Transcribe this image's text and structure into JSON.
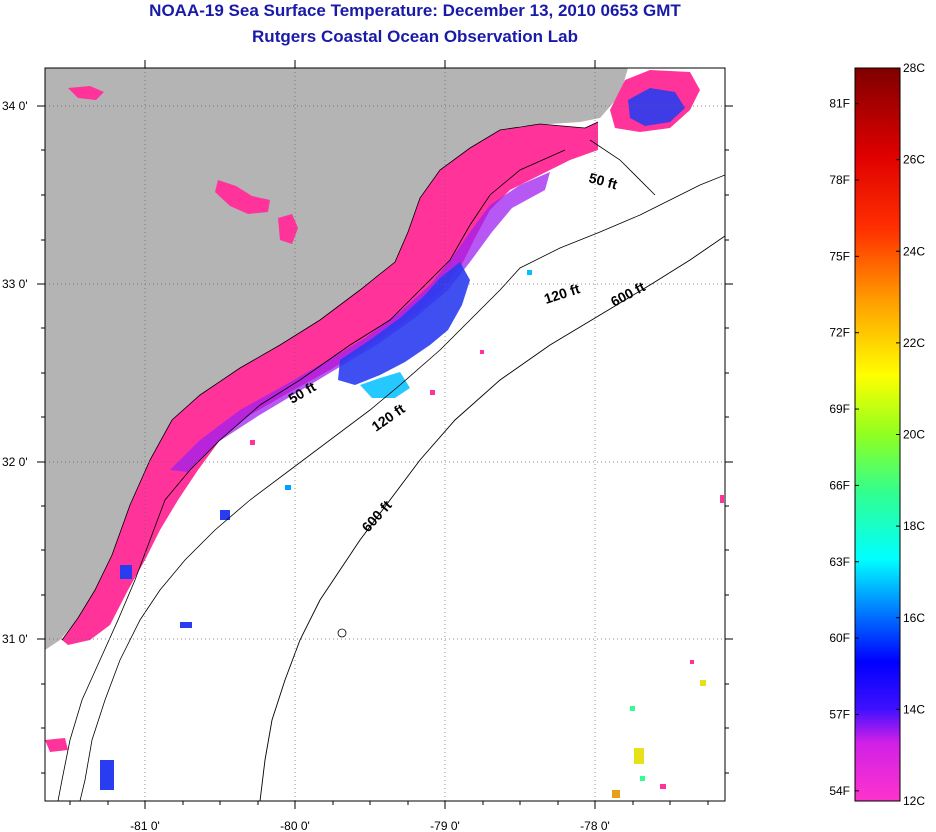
{
  "title": "NOAA-19 Sea Surface Temperature:  December 13, 2010 0653 GMT",
  "subtitle": "Rutgers Coastal Ocean Observation Lab",
  "map": {
    "lon_range": [
      -81.65,
      -77.2
    ],
    "lat_range": [
      30.0,
      34.2
    ],
    "lat_ticks": [
      "34 0'",
      "33 0'",
      "32 0'",
      "31 0'"
    ],
    "lon_ticks": [
      "-81 0'",
      "-80 0'",
      "-79 0'",
      "-78 0'"
    ],
    "contours": [
      {
        "label": "50 ft"
      },
      {
        "label": "50 ft"
      },
      {
        "label": "120 ft"
      },
      {
        "label": "120 ft"
      },
      {
        "label": "600 ft"
      },
      {
        "label": "600 ft"
      }
    ],
    "colors": {
      "land": "#b4b4b4",
      "cold_band": "#ff3399",
      "mid_band": "#2a3cf0",
      "warm_dots": "#e8e018"
    }
  },
  "colorbar": {
    "fahrenheit": [
      "81F",
      "78F",
      "75F",
      "72F",
      "69F",
      "66F",
      "63F",
      "60F",
      "57F",
      "54F"
    ],
    "celsius": [
      "28C",
      "26C",
      "24C",
      "22C",
      "20C",
      "18C",
      "16C",
      "14C",
      "12C"
    ],
    "range_c": [
      12,
      28
    ],
    "range_f": [
      54,
      82.4
    ],
    "colors": [
      "#ff33cc",
      "#a020f0",
      "#0000ff",
      "#00a0ff",
      "#00ffff",
      "#30ff90",
      "#90ff20",
      "#ffff00",
      "#ffa000",
      "#ff4000",
      "#ff0000",
      "#c00000",
      "#800000"
    ]
  }
}
